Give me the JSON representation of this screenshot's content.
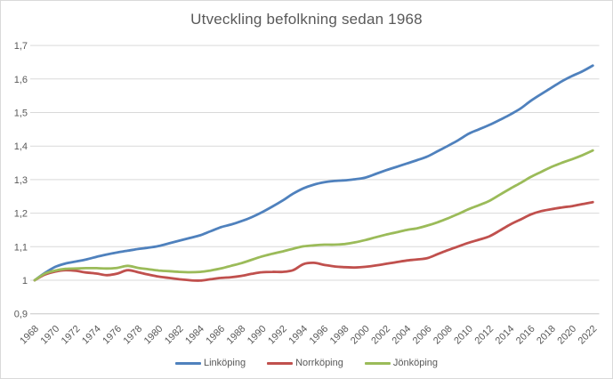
{
  "chart_data": {
    "type": "line",
    "title": "Utveckling befolkning sedan 1968",
    "x_start": 1968,
    "x_end": 2022,
    "x_step": 1,
    "x_tick_labels": [
      "1968",
      "1970",
      "1972",
      "1974",
      "1976",
      "1978",
      "1980",
      "1982",
      "1984",
      "1986",
      "1988",
      "1990",
      "1992",
      "1994",
      "1996",
      "1998",
      "2000",
      "2002",
      "2004",
      "2006",
      "2008",
      "2010",
      "2012",
      "2014",
      "2016",
      "2018",
      "2020",
      "2022"
    ],
    "y_tick_labels": [
      "0,9",
      "1",
      "1,1",
      "1,2",
      "1,3",
      "1,4",
      "1,5",
      "1,6",
      "1,7"
    ],
    "ylim": [
      0.9,
      1.7
    ],
    "grid": "horizontal",
    "legend_position": "bottom",
    "series": [
      {
        "name": "Linköping",
        "color": "#4F81BD",
        "values": [
          1.0,
          1.022,
          1.04,
          1.05,
          1.056,
          1.062,
          1.07,
          1.077,
          1.083,
          1.088,
          1.093,
          1.097,
          1.102,
          1.11,
          1.118,
          1.126,
          1.134,
          1.146,
          1.158,
          1.166,
          1.176,
          1.188,
          1.203,
          1.22,
          1.238,
          1.258,
          1.274,
          1.285,
          1.292,
          1.296,
          1.298,
          1.301,
          1.306,
          1.317,
          1.328,
          1.338,
          1.348,
          1.358,
          1.369,
          1.385,
          1.401,
          1.418,
          1.437,
          1.45,
          1.463,
          1.478,
          1.494,
          1.512,
          1.535,
          1.555,
          1.574,
          1.593,
          1.609,
          1.623,
          1.64
        ]
      },
      {
        "name": "Norrköping",
        "color": "#C0504D",
        "values": [
          1.0,
          1.017,
          1.026,
          1.03,
          1.028,
          1.023,
          1.02,
          1.015,
          1.02,
          1.03,
          1.024,
          1.017,
          1.011,
          1.007,
          1.003,
          1.0,
          0.999,
          1.003,
          1.007,
          1.009,
          1.013,
          1.019,
          1.024,
          1.025,
          1.025,
          1.03,
          1.048,
          1.052,
          1.046,
          1.041,
          1.039,
          1.038,
          1.04,
          1.044,
          1.049,
          1.054,
          1.059,
          1.062,
          1.066,
          1.078,
          1.09,
          1.101,
          1.112,
          1.121,
          1.131,
          1.148,
          1.166,
          1.181,
          1.196,
          1.206,
          1.212,
          1.217,
          1.221,
          1.227,
          1.233
        ]
      },
      {
        "name": "Jönköping",
        "color": "#9BBB59",
        "values": [
          1.0,
          1.02,
          1.029,
          1.034,
          1.035,
          1.036,
          1.036,
          1.035,
          1.037,
          1.043,
          1.037,
          1.033,
          1.029,
          1.027,
          1.025,
          1.024,
          1.025,
          1.029,
          1.035,
          1.043,
          1.051,
          1.061,
          1.071,
          1.079,
          1.086,
          1.094,
          1.101,
          1.104,
          1.106,
          1.106,
          1.108,
          1.113,
          1.12,
          1.128,
          1.136,
          1.143,
          1.15,
          1.155,
          1.163,
          1.173,
          1.185,
          1.198,
          1.212,
          1.224,
          1.237,
          1.255,
          1.273,
          1.29,
          1.308,
          1.323,
          1.338,
          1.35,
          1.361,
          1.373,
          1.387
        ]
      }
    ]
  },
  "colors": {
    "text": "#595959",
    "gridline": "#d9d9d9",
    "axis_line": "#c6c6c6",
    "background": "#ffffff",
    "border": "#d9d9d9"
  }
}
